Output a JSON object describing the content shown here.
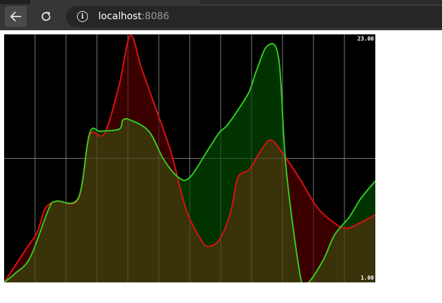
{
  "browser": {
    "url_host": "localhost",
    "url_port": ":8086",
    "icons": {
      "back": "arrow-left-icon",
      "reload": "reload-icon",
      "site_info": "info-icon"
    }
  },
  "chart_data": {
    "type": "area",
    "y_max_label": "23.00",
    "y_min_label": "1.00",
    "ylim": [
      1,
      23
    ],
    "grid": true,
    "vertical_gridlines": 12,
    "horizontal_gridlines": 1,
    "colors": {
      "green_line": "#33cc22",
      "red_line": "#dd1111",
      "overlap_fill": "#3a3208",
      "green_above_fill": "#003300",
      "red_above_fill": "#3a0000",
      "gridline": "#7a7a7a"
    },
    "series": [
      {
        "color": "green",
        "points": [
          [
            0,
            1
          ],
          [
            0.03,
            1.8
          ],
          [
            0.07,
            3.2
          ],
          [
            0.12,
            7.5
          ],
          [
            0.14,
            8.2
          ],
          [
            0.2,
            8.5
          ],
          [
            0.23,
            14.2
          ],
          [
            0.26,
            14.4
          ],
          [
            0.31,
            14.6
          ],
          [
            0.32,
            15.4
          ],
          [
            0.34,
            15.4
          ],
          [
            0.39,
            14.4
          ],
          [
            0.43,
            11.9
          ],
          [
            0.47,
            10.3
          ],
          [
            0.5,
            10.3
          ],
          [
            0.55,
            12.8
          ],
          [
            0.58,
            14.3
          ],
          [
            0.6,
            14.9
          ],
          [
            0.63,
            16.3
          ],
          [
            0.66,
            17.9
          ],
          [
            0.68,
            19.8
          ],
          [
            0.71,
            22.0
          ],
          [
            0.74,
            20.8
          ],
          [
            0.76,
            11.0
          ],
          [
            0.8,
            1.2
          ],
          [
            0.82,
            1.0
          ],
          [
            0.86,
            3.0
          ],
          [
            0.89,
            5.2
          ],
          [
            0.93,
            6.8
          ],
          [
            0.96,
            8.4
          ],
          [
            1,
            10.0
          ]
        ]
      },
      {
        "color": "red",
        "points": [
          [
            0,
            1
          ],
          [
            0.03,
            2.5
          ],
          [
            0.06,
            4.0
          ],
          [
            0.09,
            5.5
          ],
          [
            0.11,
            7.5
          ],
          [
            0.14,
            8.2
          ],
          [
            0.2,
            8.4
          ],
          [
            0.23,
            14.0
          ],
          [
            0.27,
            14.2
          ],
          [
            0.31,
            18.5
          ],
          [
            0.34,
            22.9
          ],
          [
            0.37,
            20.0
          ],
          [
            0.41,
            16.3
          ],
          [
            0.45,
            12.5
          ],
          [
            0.49,
            7.5
          ],
          [
            0.53,
            4.8
          ],
          [
            0.55,
            4.2
          ],
          [
            0.58,
            4.8
          ],
          [
            0.61,
            7.2
          ],
          [
            0.63,
            10.3
          ],
          [
            0.66,
            11.0
          ],
          [
            0.69,
            12.6
          ],
          [
            0.72,
            13.6
          ],
          [
            0.76,
            12.0
          ],
          [
            0.8,
            10.0
          ],
          [
            0.84,
            7.8
          ],
          [
            0.88,
            6.5
          ],
          [
            0.92,
            5.8
          ],
          [
            0.96,
            6.3
          ],
          [
            1,
            7.0
          ]
        ]
      }
    ]
  }
}
